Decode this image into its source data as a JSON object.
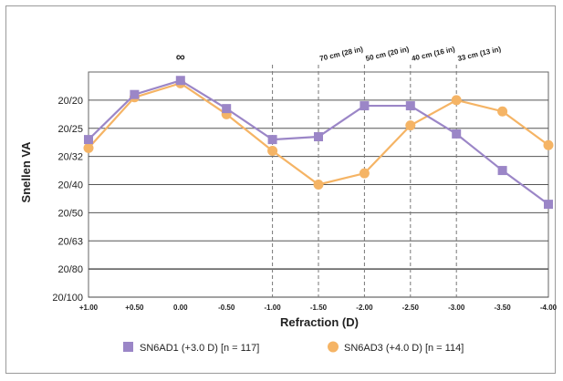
{
  "chart_data": {
    "type": "line",
    "title": "",
    "xlabel": "Refraction (D)",
    "ylabel": "Snellen VA",
    "x_ticks": [
      "+1.00",
      "+0.50",
      "0.00",
      "-0.50",
      "-1.00",
      "-1.50",
      "-2.00",
      "-2.50",
      "-3.00",
      "-3.50",
      "-4.00"
    ],
    "x": [
      1.0,
      0.5,
      0.0,
      -0.5,
      -1.0,
      -1.5,
      -2.0,
      -2.5,
      -3.0,
      -3.5,
      -4.0
    ],
    "xlim": [
      1.0,
      -4.0
    ],
    "y_ticks": [
      "20/20",
      "20/25",
      "20/32",
      "20/40",
      "20/50",
      "20/63",
      "20/80",
      "20/100"
    ],
    "y_scale": "logMAR",
    "ylim": [
      0.7,
      -0.1
    ],
    "grid": "horizontal solid at y ticks, vertical dashed at -1.00 to -3.00",
    "annotations": [
      {
        "text": "∞",
        "x": 0.0
      },
      {
        "text": "70 cm (28 in)",
        "x": -1.5
      },
      {
        "text": "50 cm (20 in)",
        "x": -2.0
      },
      {
        "text": "40 cm (16 in)",
        "x": -2.5
      },
      {
        "text": "33 cm (13 in)",
        "x": -3.0
      }
    ],
    "series": [
      {
        "name": "SN6AD1 (+3.0 D) [n = 117]",
        "color": "#9b86c7",
        "marker": "square",
        "values": [
          0.14,
          -0.02,
          -0.07,
          0.03,
          0.14,
          0.13,
          0.02,
          0.02,
          0.12,
          0.25,
          0.37
        ]
      },
      {
        "name": "SN6AD3 (+4.0 D) [n = 114]",
        "color": "#f5b465",
        "marker": "circle",
        "values": [
          0.17,
          -0.01,
          -0.06,
          0.05,
          0.18,
          0.3,
          0.26,
          0.09,
          0.0,
          0.04,
          0.16
        ]
      }
    ],
    "legend_position": "bottom"
  }
}
